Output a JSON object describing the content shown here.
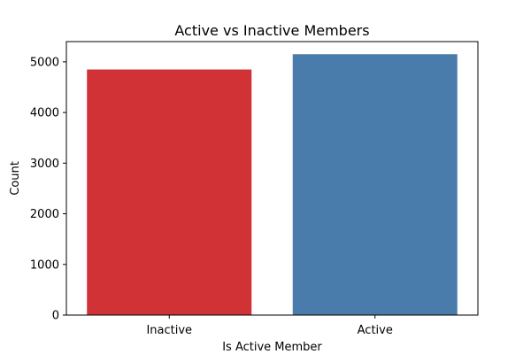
{
  "chart_data": {
    "type": "bar",
    "title": "Active vs Inactive Members",
    "xlabel": "Is Active Member",
    "ylabel": "Count",
    "categories": [
      "Inactive",
      "Active"
    ],
    "values": [
      4849,
      5151
    ],
    "colors": [
      "#d03236",
      "#497bab"
    ],
    "ylim": [
      0,
      5400
    ],
    "yticks": [
      0,
      1000,
      2000,
      3000,
      4000,
      5000
    ],
    "grid": false,
    "legend": "none"
  }
}
